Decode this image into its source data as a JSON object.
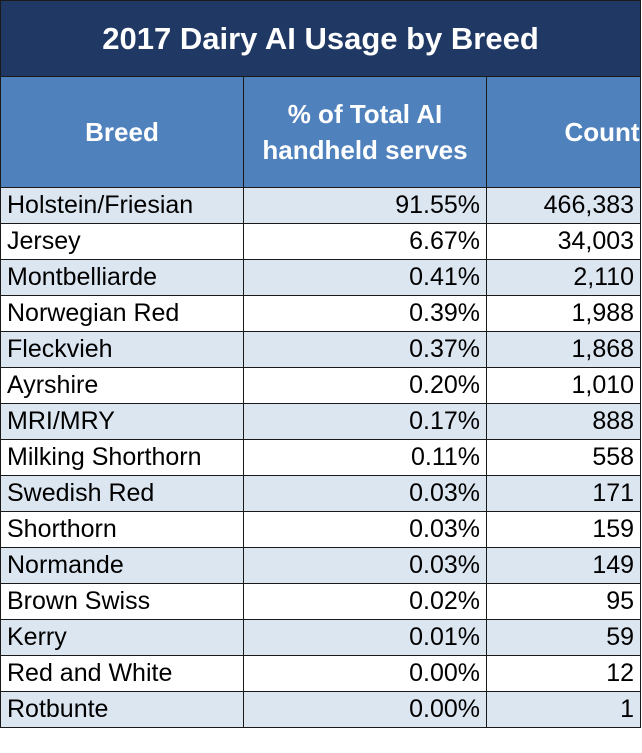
{
  "chart_data": {
    "type": "table",
    "title": "2017 Dairy AI Usage by Breed",
    "columns": [
      "Breed",
      "% of Total AI handheld serves",
      "Count"
    ],
    "rows": [
      {
        "breed": "Holstein/Friesian",
        "pct": "91.55%",
        "count": "466,383"
      },
      {
        "breed": "Jersey",
        "pct": "6.67%",
        "count": "34,003"
      },
      {
        "breed": "Montbelliarde",
        "pct": "0.41%",
        "count": "2,110"
      },
      {
        "breed": "Norwegian Red",
        "pct": "0.39%",
        "count": "1,988"
      },
      {
        "breed": "Fleckvieh",
        "pct": "0.37%",
        "count": "1,868"
      },
      {
        "breed": "Ayrshire",
        "pct": "0.20%",
        "count": "1,010"
      },
      {
        "breed": "MRI/MRY",
        "pct": "0.17%",
        "count": "888"
      },
      {
        "breed": "Milking Shorthorn",
        "pct": "0.11%",
        "count": "558"
      },
      {
        "breed": "Swedish Red",
        "pct": "0.03%",
        "count": "171"
      },
      {
        "breed": "Shorthorn",
        "pct": "0.03%",
        "count": "159"
      },
      {
        "breed": "Normande",
        "pct": "0.03%",
        "count": "149"
      },
      {
        "breed": "Brown Swiss",
        "pct": "0.02%",
        "count": "95"
      },
      {
        "breed": "Kerry",
        "pct": "0.01%",
        "count": "59"
      },
      {
        "breed": "Red and White",
        "pct": "0.00%",
        "count": "12"
      },
      {
        "breed": "Rotbunte",
        "pct": "0.00%",
        "count": "1"
      }
    ],
    "colors": {
      "title_bg": "#1f3864",
      "header_bg": "#4f81bd",
      "band_bg": "#dce6f1",
      "text_header": "#ffffff"
    }
  }
}
